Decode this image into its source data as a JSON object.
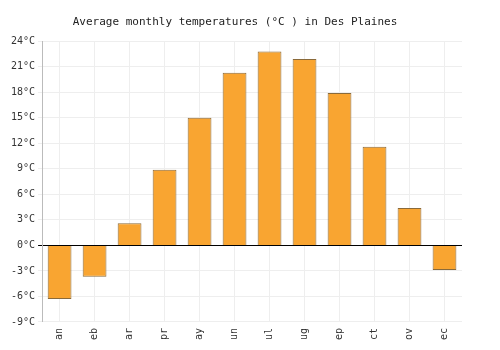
{
  "chart_data": {
    "type": "bar",
    "title": "Average monthly temperatures (°C ) in Des Plaines",
    "categories": [
      "an",
      "eb",
      "ar",
      "pr",
      "ay",
      "un",
      "ul",
      "ug",
      "ep",
      "ct",
      "ov",
      "ec"
    ],
    "values": [
      -6.3,
      -3.7,
      2.6,
      8.9,
      15.0,
      20.3,
      22.8,
      21.9,
      17.9,
      11.6,
      4.4,
      -2.9
    ],
    "color": "#f9a531",
    "ylim": [
      -9,
      24
    ],
    "yticks": [
      {
        "value": -9,
        "label": "-9°C"
      },
      {
        "value": -6,
        "label": "-6°C"
      },
      {
        "value": -3,
        "label": "-3°C"
      },
      {
        "value": 0,
        "label": "0°C"
      },
      {
        "value": 3,
        "label": "3°C"
      },
      {
        "value": 6,
        "label": "6°C"
      },
      {
        "value": 9,
        "label": "9°C"
      },
      {
        "value": 12,
        "label": "12°C"
      },
      {
        "value": 15,
        "label": "15°C"
      },
      {
        "value": 18,
        "label": "18°C"
      },
      {
        "value": 21,
        "label": "21°C"
      },
      {
        "value": 24,
        "label": "24°C"
      }
    ],
    "grid": true
  }
}
